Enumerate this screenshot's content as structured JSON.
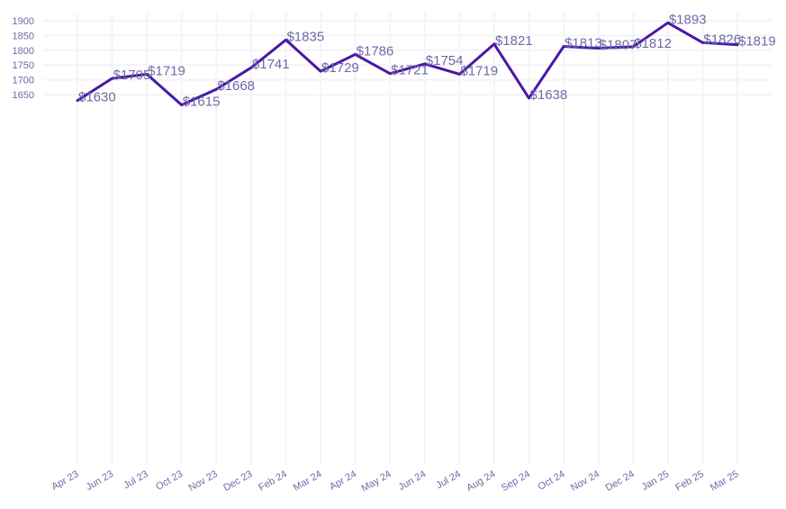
{
  "chart_data": {
    "type": "line",
    "title": "",
    "xlabel": "",
    "ylabel": "",
    "categories": [
      "Apr 23",
      "Jun 23",
      "Jul 23",
      "Oct 23",
      "Nov 23",
      "Dec 23",
      "Feb 24",
      "Mar 24",
      "Apr 24",
      "May 24",
      "Jun 24",
      "Jul 24",
      "Aug 24",
      "Sep 24",
      "Oct 24",
      "Nov 24",
      "Dec 24",
      "Jan 25",
      "Feb 25",
      "Mar 25"
    ],
    "values": [
      1630,
      1705,
      1719,
      1615,
      1668,
      1741,
      1835,
      1729,
      1786,
      1721,
      1754,
      1719,
      1821,
      1638,
      1813,
      1807,
      1812,
      1893,
      1826,
      1819
    ],
    "data_labels": [
      "$1630",
      "$1705",
      "$1719",
      "$1615",
      "$1668",
      "$1741",
      "$1835",
      "$1729",
      "$1786",
      "$1721",
      "$1754",
      "$1719",
      "$1821",
      "$1638",
      "$1813",
      "$1807",
      "$1812",
      "$1893",
      "$1826",
      "$1819"
    ],
    "y_ticks": [
      1650,
      1700,
      1750,
      1800,
      1850,
      1900
    ],
    "ylim": [
      1600,
      1900
    ],
    "grid": true,
    "legend": "none",
    "line_color": "#4a17a6"
  }
}
